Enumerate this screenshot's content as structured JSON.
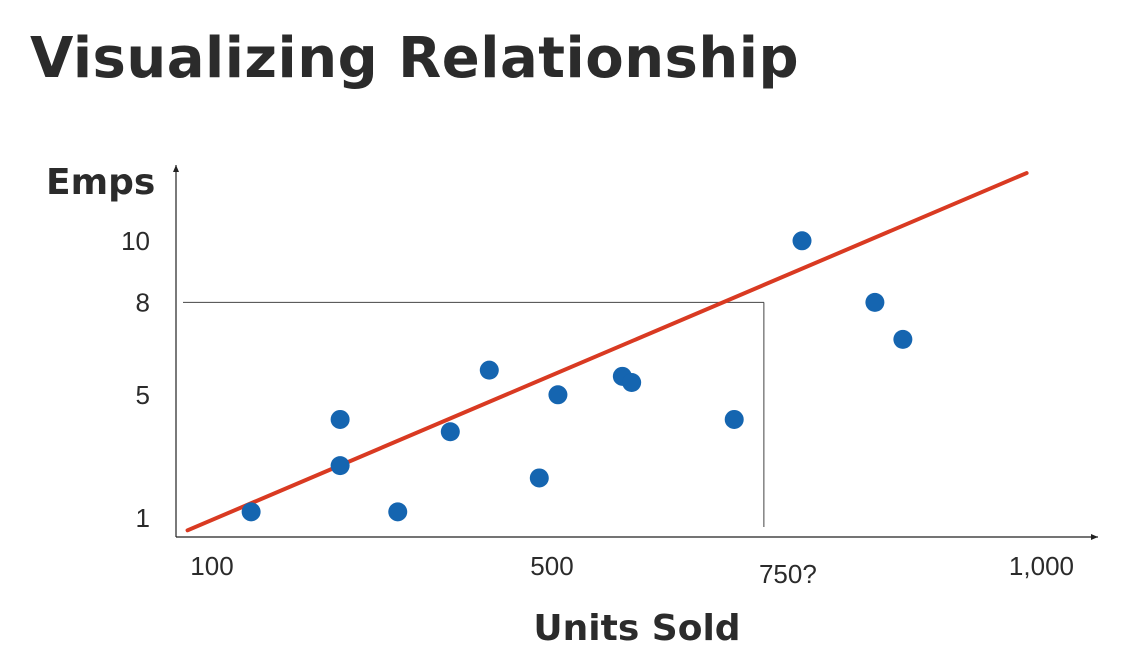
{
  "slide": {
    "title": "Visualizing Relationship"
  },
  "chart_data": {
    "type": "scatter",
    "title": "Visualizing Relationship",
    "xlabel": "Units Sold",
    "ylabel": "Emps",
    "x_ticks": [
      {
        "value": 100,
        "label": "100"
      },
      {
        "value": 500,
        "label": "500"
      },
      {
        "value": 1000,
        "label": "1,000"
      }
    ],
    "y_ticks": [
      {
        "value": 1,
        "label": "1"
      },
      {
        "value": 5,
        "label": "5"
      },
      {
        "value": 8,
        "label": "8"
      },
      {
        "value": 10,
        "label": "10"
      }
    ],
    "points": [
      {
        "x": 145,
        "y": 1.2
      },
      {
        "x": 250,
        "y": 4.2
      },
      {
        "x": 250,
        "y": 2.7
      },
      {
        "x": 318,
        "y": 1.2
      },
      {
        "x": 380,
        "y": 3.8
      },
      {
        "x": 426,
        "y": 5.8
      },
      {
        "x": 485,
        "y": 2.3
      },
      {
        "x": 507,
        "y": 5.0
      },
      {
        "x": 583,
        "y": 5.6
      },
      {
        "x": 594,
        "y": 5.4
      },
      {
        "x": 715,
        "y": 4.2
      },
      {
        "x": 795,
        "y": 10.0
      },
      {
        "x": 881,
        "y": 8.0
      },
      {
        "x": 914,
        "y": 6.8
      }
    ],
    "trend_line": {
      "x0": 70,
      "y0": 0.6,
      "x1": 1060,
      "y1": 12.2
    },
    "prediction": {
      "x": 750,
      "y": 8,
      "label": "750?"
    },
    "colors": {
      "points": "#1565b0",
      "trend": "#d93a22",
      "axis": "#222222",
      "guide": "#444444"
    }
  }
}
